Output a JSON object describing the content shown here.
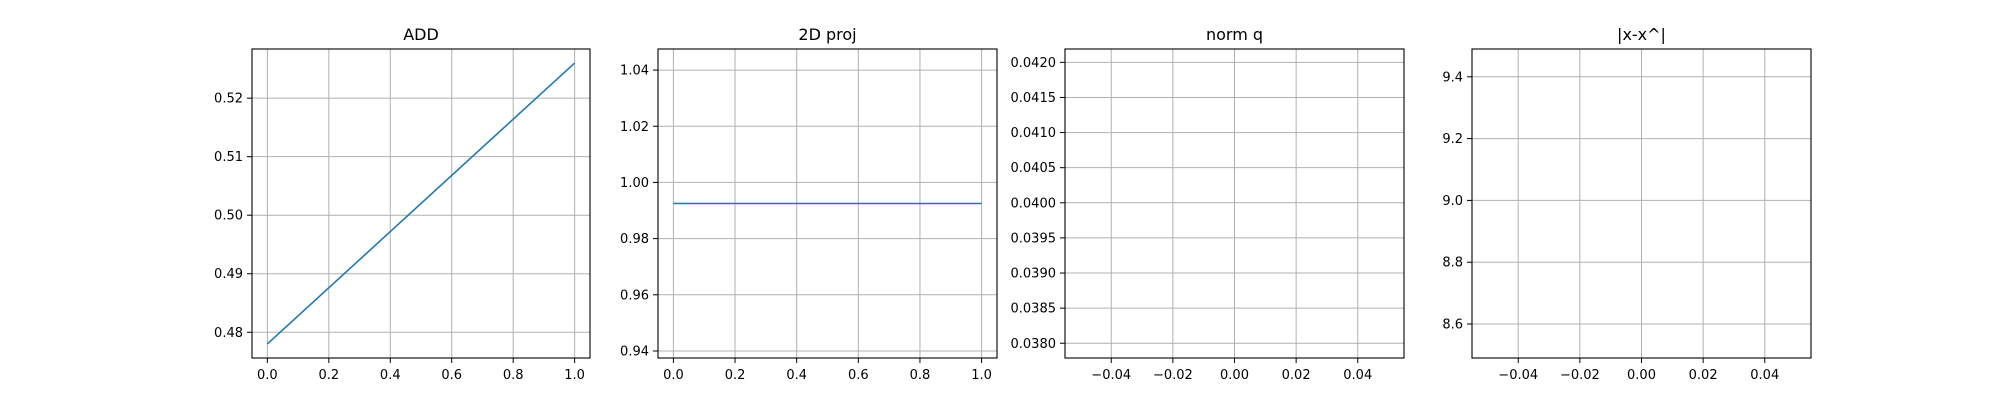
{
  "figure": {
    "background": "#ffffff",
    "line_color": "#1f77b4",
    "grid_color": "#b0b0b0",
    "grid": true
  },
  "chart_data": [
    {
      "type": "line",
      "title": "ADD",
      "xlabel": "",
      "ylabel": "",
      "xlim": [
        -0.05,
        1.05
      ],
      "ylim": [
        0.4756,
        0.5284
      ],
      "xticks": [
        "0.0",
        "0.2",
        "0.4",
        "0.6",
        "0.8",
        "1.0"
      ],
      "yticks": [
        "0.48",
        "0.49",
        "0.50",
        "0.51",
        "0.52"
      ],
      "series": [
        {
          "x": [
            0.0,
            1.0
          ],
          "y": [
            0.478,
            0.526
          ]
        }
      ]
    },
    {
      "type": "line",
      "title": "2D proj",
      "xlabel": "",
      "ylabel": "",
      "xlim": [
        -0.05,
        1.05
      ],
      "ylim": [
        0.9375,
        1.0475
      ],
      "xticks": [
        "0.0",
        "0.2",
        "0.4",
        "0.6",
        "0.8",
        "1.0"
      ],
      "yticks": [
        "0.94",
        "0.96",
        "0.98",
        "1.00",
        "1.02",
        "1.04"
      ],
      "series": [
        {
          "x": [
            0.0,
            1.0
          ],
          "y": [
            0.9925,
            0.9925
          ]
        }
      ]
    },
    {
      "type": "line",
      "title": "norm q",
      "xlabel": "",
      "ylabel": "",
      "xlim": [
        -0.055,
        0.055
      ],
      "ylim": [
        0.03779,
        0.04219
      ],
      "xticks": [
        "−0.04",
        "−0.02",
        "0.00",
        "0.02",
        "0.04"
      ],
      "yticks": [
        "0.0380",
        "0.0385",
        "0.0390",
        "0.0395",
        "0.0400",
        "0.0405",
        "0.0410",
        "0.0415",
        "0.0420"
      ],
      "series": []
    },
    {
      "type": "line",
      "title": "|x-x^|",
      "xlabel": "",
      "ylabel": "",
      "xlim": [
        -0.055,
        0.055
      ],
      "ylim": [
        8.49,
        9.49
      ],
      "xticks": [
        "−0.04",
        "−0.02",
        "0.00",
        "0.02",
        "0.04"
      ],
      "yticks": [
        "8.6",
        "8.8",
        "9.0",
        "9.2",
        "9.4"
      ],
      "series": []
    }
  ]
}
